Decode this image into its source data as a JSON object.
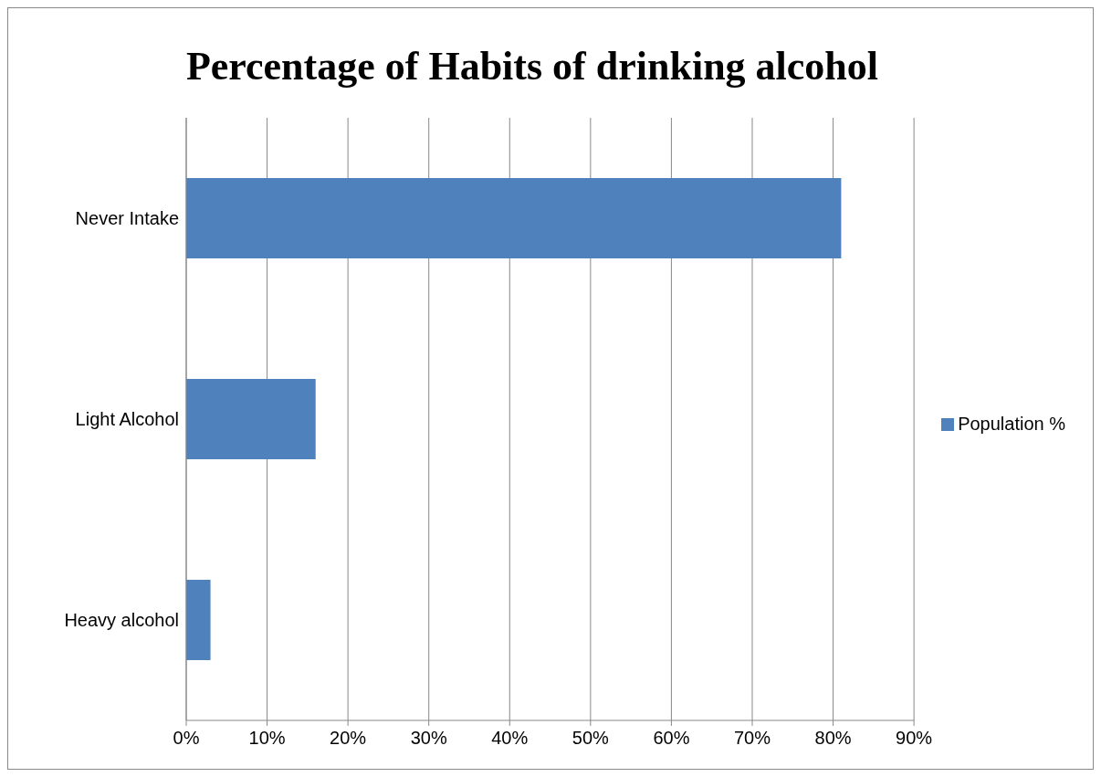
{
  "chart_data": {
    "type": "bar",
    "orientation": "horizontal",
    "title": "Percentage of Habits of drinking alcohol",
    "categories": [
      "Never Intake",
      "Light Alcohol",
      "Heavy alcohol"
    ],
    "series": [
      {
        "name": "Population %",
        "color": "#4f81bd",
        "values": [
          81,
          16,
          3
        ]
      }
    ],
    "xlim": [
      0,
      90
    ],
    "xticks": [
      {
        "value": 0,
        "label": "0%"
      },
      {
        "value": 10,
        "label": "10%"
      },
      {
        "value": 20,
        "label": "20%"
      },
      {
        "value": 30,
        "label": "30%"
      },
      {
        "value": 40,
        "label": "40%"
      },
      {
        "value": 50,
        "label": "50%"
      },
      {
        "value": 60,
        "label": "60%"
      },
      {
        "value": 70,
        "label": "70%"
      },
      {
        "value": 80,
        "label": "80%"
      },
      {
        "value": 90,
        "label": "90%"
      }
    ],
    "grid": "x",
    "legend": "right"
  }
}
